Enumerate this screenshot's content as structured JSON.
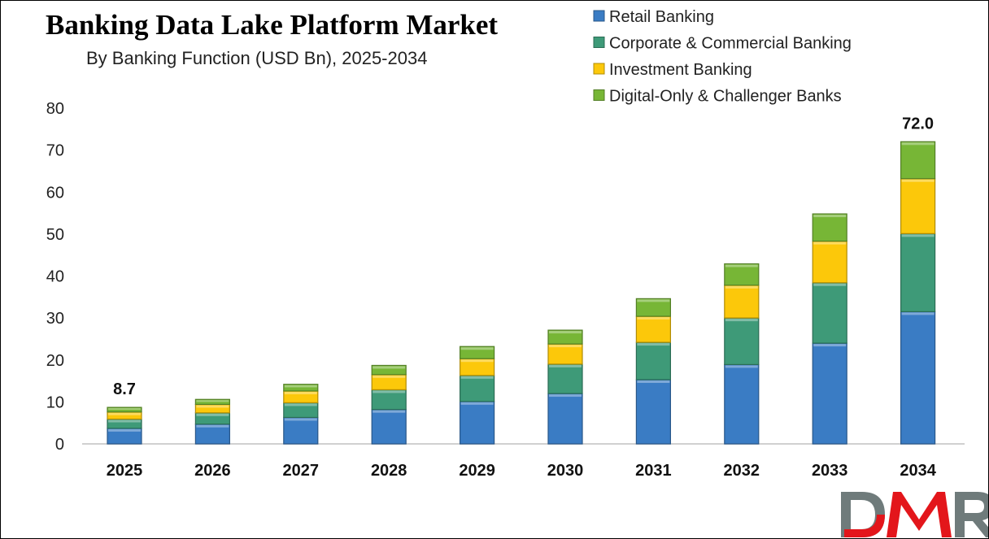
{
  "chart_data": {
    "type": "bar",
    "stacked": true,
    "title": "Banking Data Lake Platform Market",
    "subtitle": "By Banking Function (USD Bn), 2025-2034",
    "xlabel": "",
    "ylabel": "",
    "ylim": [
      0,
      80
    ],
    "yticks": [
      0,
      10,
      20,
      30,
      40,
      50,
      60,
      70,
      80
    ],
    "grid": false,
    "legend_position": "top-right",
    "categories": [
      "2025",
      "2026",
      "2027",
      "2028",
      "2029",
      "2030",
      "2031",
      "2032",
      "2033",
      "2034"
    ],
    "series": [
      {
        "name": "Retail Banking",
        "color": "#3a7cc4",
        "values": [
          3.7,
          4.7,
          6.3,
          8.2,
          10.1,
          12.0,
          15.3,
          18.9,
          24.0,
          31.5
        ]
      },
      {
        "name": "Corporate & Commercial Banking",
        "color": "#3e9a78",
        "values": [
          2.2,
          2.7,
          3.5,
          4.7,
          6.2,
          7.0,
          8.9,
          11.1,
          14.4,
          18.6
        ]
      },
      {
        "name": "Investment Banking",
        "color": "#fcc80a",
        "values": [
          1.7,
          2.0,
          2.8,
          3.6,
          4.0,
          4.8,
          6.2,
          7.8,
          9.9,
          13.1
        ]
      },
      {
        "name": "Digital-Only & Challenger Banks",
        "color": "#77b636",
        "values": [
          1.1,
          1.2,
          1.6,
          2.2,
          2.9,
          3.3,
          4.2,
          5.1,
          6.5,
          8.8
        ]
      }
    ],
    "data_labels": [
      {
        "category": "2025",
        "text": "8.7"
      },
      {
        "category": "2034",
        "text": "72.0"
      }
    ]
  },
  "logo": {
    "text": "DMR",
    "colors": [
      "#6f7b7b",
      "#e3161b"
    ]
  }
}
